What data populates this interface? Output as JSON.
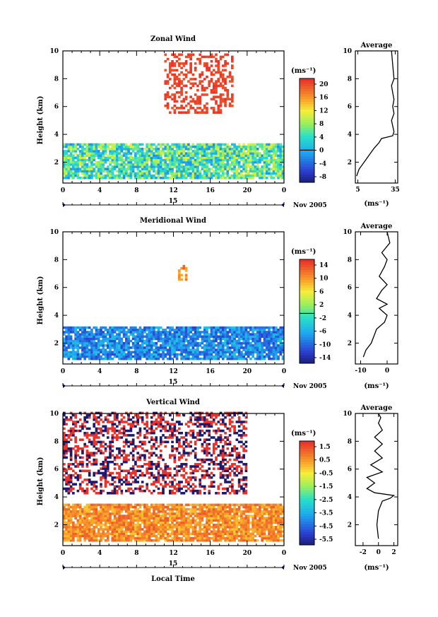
{
  "panels": [
    {
      "id": "zonal",
      "title": "Zonal Wind",
      "ylabel": "Height (km)",
      "yticks": [
        "2",
        "4",
        "6",
        "8",
        "10"
      ],
      "xticks": [
        "0",
        "4",
        "8",
        "12",
        "16",
        "20",
        "0"
      ],
      "day_label": "15",
      "date_label": "Nov 2005",
      "colorbar": {
        "unit_label": "(ms⁻¹)",
        "ticks": [
          "20",
          "16",
          "12",
          "8",
          "4",
          "0",
          "-4",
          "-8"
        ]
      },
      "average": {
        "title": "Average",
        "xticks": [
          "5",
          "35"
        ],
        "yticks": [
          "2",
          "4",
          "6",
          "8",
          "10"
        ],
        "unit_label": "(ms⁻¹)"
      }
    },
    {
      "id": "meridional",
      "title": "Meridional Wind",
      "ylabel": "Height (km)",
      "yticks": [
        "2",
        "4",
        "6",
        "8",
        "10"
      ],
      "xticks": [
        "0",
        "4",
        "8",
        "12",
        "16",
        "20",
        "0"
      ],
      "day_label": "15",
      "date_label": "Nov 2005",
      "colorbar": {
        "unit_label": "(ms⁻¹)",
        "ticks": [
          "14",
          "10",
          "6",
          "2",
          "-2",
          "-6",
          "-10",
          "-14"
        ]
      },
      "average": {
        "title": "Average",
        "xticks": [
          "-10",
          "0"
        ],
        "yticks": [
          "2",
          "4",
          "6",
          "8",
          "10"
        ],
        "unit_label": "(ms⁻¹)"
      }
    },
    {
      "id": "vertical",
      "title": "Vertical Wind",
      "ylabel": "Height (km)",
      "xlabel": "Local Time",
      "yticks": [
        "2",
        "4",
        "6",
        "8",
        "10"
      ],
      "xticks": [
        "0",
        "4",
        "8",
        "12",
        "16",
        "20",
        "0"
      ],
      "day_label": "15",
      "date_label": "Nov 2005",
      "colorbar": {
        "unit_label": "(ms⁻¹)",
        "ticks": [
          "1.5",
          "0.5",
          "-0.5",
          "-1.5",
          "-2.5",
          "-3.5",
          "-4.5",
          "-5.5"
        ]
      },
      "average": {
        "title": "Average",
        "xticks": [
          "-2",
          "0",
          "2"
        ],
        "yticks": [
          "2",
          "4",
          "6",
          "8",
          "10"
        ],
        "unit_label": "(ms⁻¹)"
      }
    }
  ],
  "chart_data": [
    {
      "type": "heatmap",
      "title": "Zonal Wind",
      "ylabel": "Height (km)",
      "x_range_hours": [
        0,
        24
      ],
      "ylim": [
        0.5,
        10
      ],
      "value_range": [
        -10,
        22
      ],
      "regions": [
        {
          "x": [
            0,
            24
          ],
          "y": [
            0.8,
            3.3
          ],
          "value_range": [
            -2,
            12
          ]
        },
        {
          "x": [
            11,
            18.5
          ],
          "y": [
            5.5,
            9.8
          ],
          "value_range": [
            20,
            22
          ]
        }
      ]
    },
    {
      "type": "line",
      "title": "Average",
      "x": [
        4,
        6,
        10,
        14,
        18,
        22,
        24,
        33,
        34,
        33,
        32,
        34,
        33,
        34,
        33,
        32,
        34,
        33,
        32
      ],
      "y": [
        1.0,
        1.5,
        2.0,
        2.5,
        3.0,
        3.4,
        3.7,
        3.9,
        4.2,
        4.6,
        5.0,
        5.5,
        6.0,
        6.5,
        7.0,
        7.5,
        8.0,
        9.0,
        10.0
      ],
      "xlim": [
        3,
        37
      ],
      "ylim": [
        0.5,
        10
      ]
    },
    {
      "type": "heatmap",
      "title": "Meridional Wind",
      "ylabel": "Height (km)",
      "x_range_hours": [
        0,
        24
      ],
      "ylim": [
        0.5,
        10
      ],
      "value_range": [
        -16,
        16
      ],
      "regions": [
        {
          "x": [
            0,
            24
          ],
          "y": [
            0.8,
            3.2
          ],
          "value_range": [
            -12,
            -4
          ]
        },
        {
          "x": [
            12.5,
            13.5
          ],
          "y": [
            6.5,
            7.5
          ],
          "value_range": [
            8,
            14
          ]
        }
      ]
    },
    {
      "type": "line",
      "title": "Average",
      "x": [
        -9,
        -8,
        -6,
        -5,
        -4,
        -1,
        0,
        -3,
        -2,
        0,
        -4,
        -2,
        0,
        -3,
        -1,
        0,
        -2,
        1,
        0
      ],
      "y": [
        1.0,
        1.5,
        2.0,
        2.5,
        3.0,
        3.5,
        4.0,
        4.5,
        4.6,
        4.8,
        5.2,
        5.8,
        6.2,
        6.8,
        7.5,
        8.0,
        8.5,
        9.2,
        10.0
      ],
      "xlim": [
        -12,
        4
      ],
      "ylim": [
        0.5,
        10
      ]
    },
    {
      "type": "heatmap",
      "title": "Vertical Wind",
      "ylabel": "Height (km)",
      "xlabel": "Local Time",
      "x_range_hours": [
        0,
        24
      ],
      "ylim": [
        0.5,
        10
      ],
      "value_range": [
        -6,
        2
      ],
      "regions": [
        {
          "x": [
            0,
            24
          ],
          "y": [
            0.8,
            3.4
          ],
          "value_range": [
            0,
            1.5
          ]
        },
        {
          "x": [
            0,
            20
          ],
          "y": [
            4.2,
            10
          ],
          "value_range": [
            -6,
            2
          ]
        }
      ]
    },
    {
      "type": "line",
      "title": "Average",
      "x": [
        0,
        -0.2,
        0,
        0.5,
        1.5,
        2,
        -0.5,
        -1.5,
        -0.5,
        -1.5,
        0.5,
        -1,
        0.5,
        -0.5,
        0.5,
        -0.5,
        0.5,
        0,
        0.3,
        0
      ],
      "y": [
        1.0,
        2.0,
        3.0,
        3.7,
        3.9,
        4.1,
        4.3,
        4.6,
        5.0,
        5.4,
        5.8,
        6.3,
        6.8,
        7.3,
        7.8,
        8.3,
        8.8,
        9.3,
        9.7,
        10.0
      ],
      "xlim": [
        -3,
        2.5
      ],
      "ylim": [
        0.5,
        10
      ]
    }
  ]
}
